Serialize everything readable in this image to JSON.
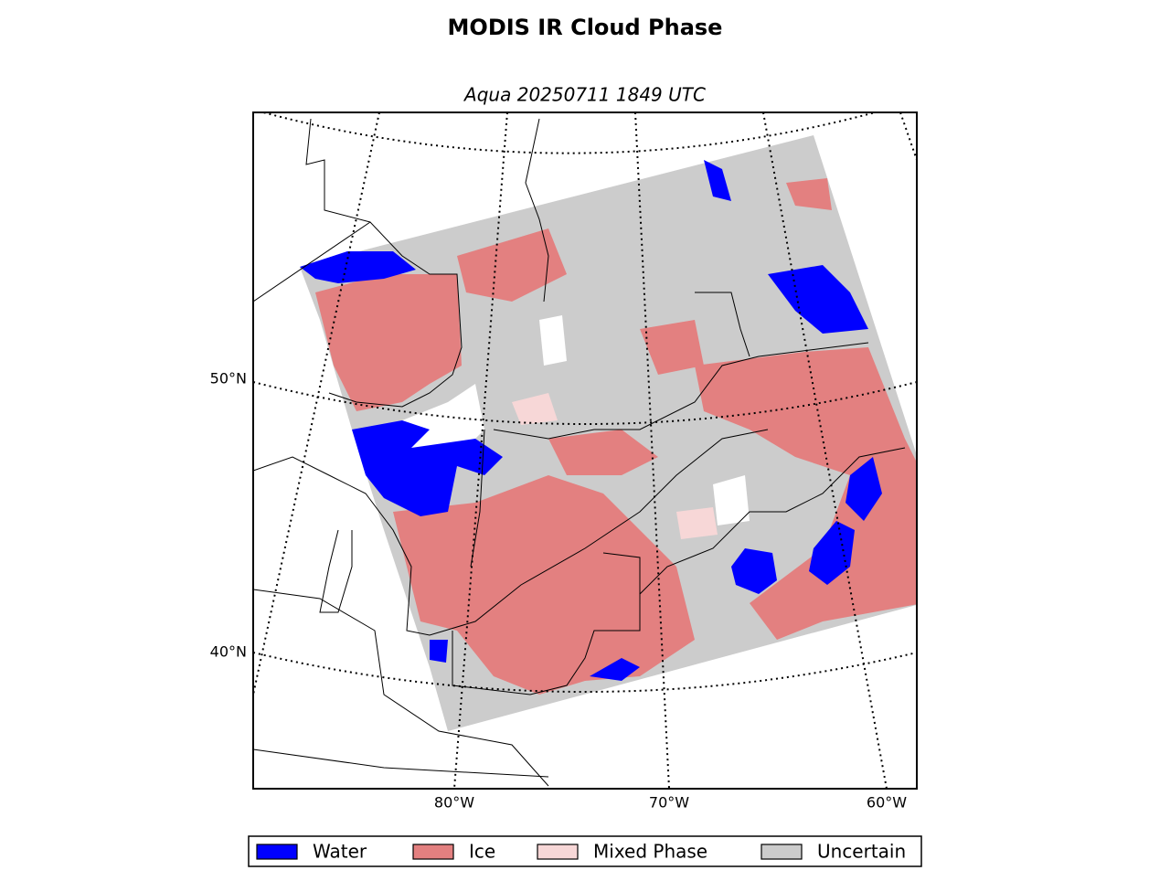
{
  "title": "MODIS IR Cloud Phase",
  "subtitle": "Aqua 20250711 1849 UTC",
  "map": {
    "lat_labels": [
      "50°N",
      "40°N"
    ],
    "lon_labels": [
      "80°W",
      "70°W",
      "60°W"
    ]
  },
  "legend": [
    {
      "label": "Water",
      "color": "#0000ff"
    },
    {
      "label": "Ice",
      "color": "#e38080"
    },
    {
      "label": "Mixed Phase",
      "color": "#f7d7d7"
    },
    {
      "label": "Uncertain",
      "color": "#cccccc"
    }
  ]
}
